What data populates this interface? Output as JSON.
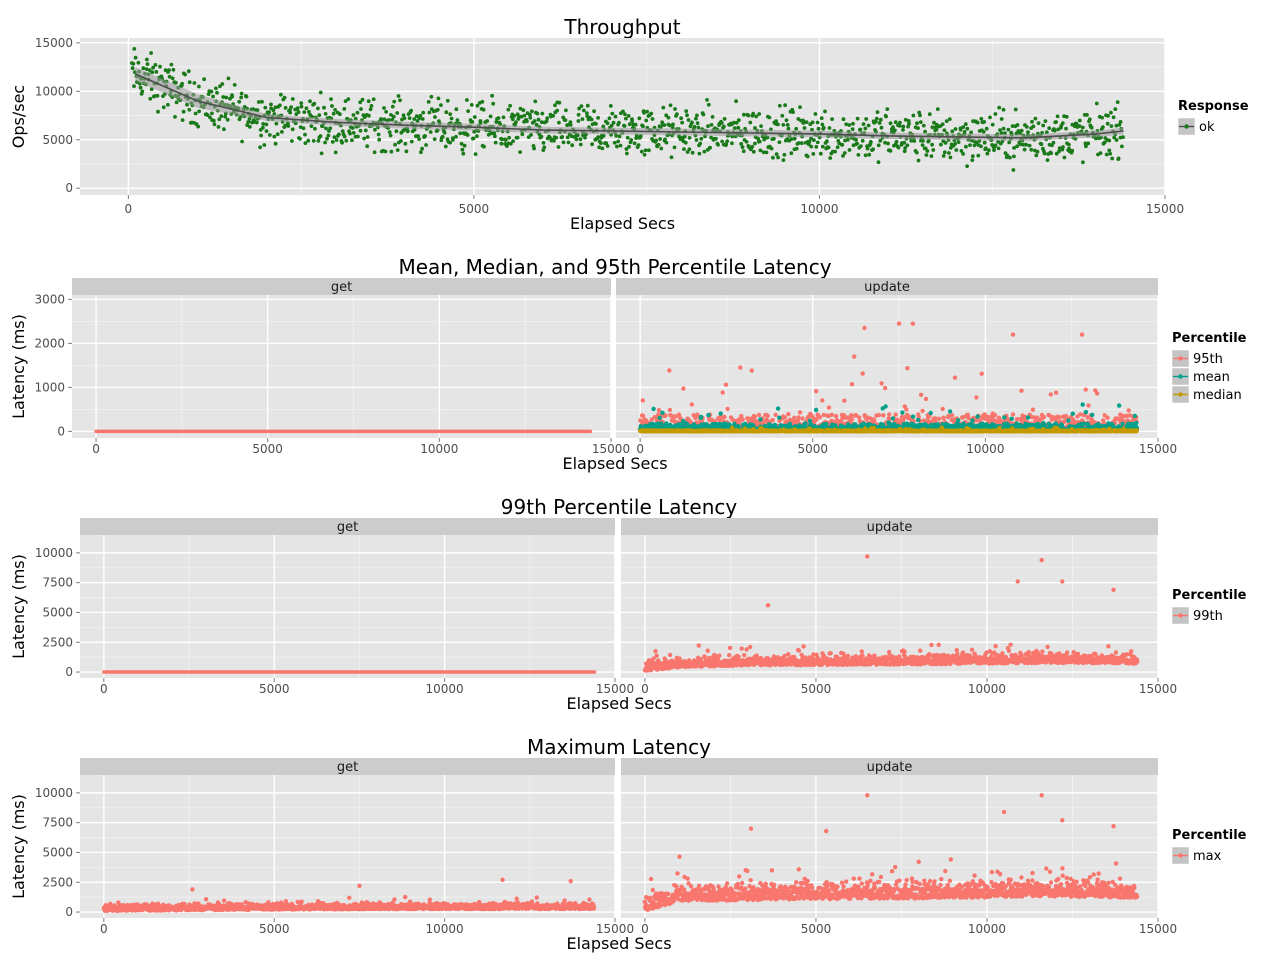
{
  "colors": {
    "panel_bg": "#e5e5e5",
    "grid_major": "#ffffff",
    "grid_minor": "#f2f2f2",
    "strip_bg": "#cccccc",
    "throughput_points": "#1a7a1a",
    "smooth_line": "#4d4d4d",
    "smooth_band": "#999999",
    "p95": "#f8766d",
    "mean": "#00a08a",
    "median": "#c49a00",
    "p99": "#f8766d",
    "max": "#f8766d"
  },
  "chart_data": [
    {
      "type": "scatter",
      "title": "Throughput",
      "xlabel": "Elapsed Secs",
      "ylabel": "Ops/sec",
      "xlim": [
        -700,
        15000
      ],
      "ylim": [
        -700,
        15500
      ],
      "xticks": [
        0,
        5000,
        10000,
        15000
      ],
      "yticks": [
        0,
        5000,
        10000,
        15000
      ],
      "grid": true,
      "legend": {
        "title": "Response",
        "placement": "right",
        "entries": [
          "ok"
        ]
      },
      "series": [
        {
          "name": "ok",
          "trend": [
            [
              100,
              11800
            ],
            [
              1000,
              9000
            ],
            [
              2000,
              7300
            ],
            [
              3000,
              6800
            ],
            [
              4000,
              6500
            ],
            [
              5000,
              6300
            ],
            [
              6000,
              6000
            ],
            [
              7000,
              5900
            ],
            [
              8000,
              5800
            ],
            [
              9000,
              5700
            ],
            [
              10000,
              5600
            ],
            [
              11000,
              5400
            ],
            [
              12000,
              5300
            ],
            [
              13000,
              5200
            ],
            [
              14000,
              5600
            ],
            [
              14400,
              5900
            ]
          ],
          "spread": 3500,
          "x_range": [
            50,
            14400
          ],
          "count": 1500
        }
      ]
    },
    {
      "type": "scatter",
      "title": "Mean, Median, and 95th Percentile Latency",
      "xlabel": "Elapsed Secs",
      "ylabel": "Latency (ms)",
      "xlim": [
        -700,
        15000
      ],
      "ylim": [
        -150,
        3100
      ],
      "xticks": [
        0,
        5000,
        10000,
        15000
      ],
      "yticks": [
        0,
        1000,
        2000,
        3000
      ],
      "grid": true,
      "facets": [
        "get",
        "update"
      ],
      "legend": {
        "title": "Percentile",
        "placement": "right",
        "entries": [
          "95th",
          "mean",
          "median"
        ]
      },
      "series": [
        {
          "name": "95th",
          "facet": "get",
          "constant": 0
        },
        {
          "name": "95th",
          "facet": "update",
          "baseline": 40,
          "spread": 350,
          "outliers": [
            [
              6500,
              2350
            ],
            [
              7500,
              2450
            ],
            [
              7900,
              2450
            ],
            [
              10800,
              2200
            ],
            [
              12800,
              2200
            ],
            [
              6200,
              1700
            ],
            [
              2900,
              1450
            ]
          ]
        },
        {
          "name": "mean",
          "facet": "update",
          "baseline": 30,
          "spread": 150
        },
        {
          "name": "median",
          "facet": "update",
          "baseline": 5,
          "spread": 20
        }
      ]
    },
    {
      "type": "scatter",
      "title": "99th Percentile Latency",
      "xlabel": "Elapsed Secs",
      "ylabel": "Latency (ms)",
      "xlim": [
        -700,
        15000
      ],
      "ylim": [
        -500,
        11500
      ],
      "xticks": [
        0,
        5000,
        10000,
        15000
      ],
      "yticks": [
        0,
        2500,
        5000,
        7500,
        10000
      ],
      "grid": true,
      "facets": [
        "get",
        "update"
      ],
      "legend": {
        "title": "Percentile",
        "placement": "right",
        "entries": [
          "99th"
        ]
      },
      "series": [
        {
          "name": "99th",
          "facet": "get",
          "constant": 0
        },
        {
          "name": "99th",
          "facet": "update",
          "trend": [
            [
              0,
              100
            ],
            [
              1000,
              800
            ],
            [
              3000,
              1100
            ],
            [
              6000,
              1200
            ],
            [
              10000,
              1400
            ],
            [
              12000,
              1550
            ],
            [
              14400,
              1400
            ]
          ],
          "spread": 1400,
          "outliers": [
            [
              6500,
              9700
            ],
            [
              11600,
              9400
            ],
            [
              12200,
              7600
            ],
            [
              10900,
              7600
            ],
            [
              13700,
              6900
            ],
            [
              3600,
              5600
            ]
          ]
        }
      ]
    },
    {
      "type": "scatter",
      "title": "Maximum Latency",
      "xlabel": "Elapsed Secs",
      "ylabel": "Latency (ms)",
      "xlim": [
        -700,
        15000
      ],
      "ylim": [
        -500,
        11500
      ],
      "xticks": [
        0,
        5000,
        10000,
        15000
      ],
      "yticks": [
        0,
        2500,
        5000,
        7500,
        10000
      ],
      "grid": true,
      "facets": [
        "get",
        "update"
      ],
      "legend": {
        "title": "Percentile",
        "placement": "right",
        "entries": [
          "max"
        ]
      },
      "series": [
        {
          "name": "max",
          "facet": "get",
          "trend": [
            [
              0,
              200
            ],
            [
              5000,
              400
            ],
            [
              10000,
              500
            ],
            [
              14400,
              500
            ]
          ],
          "spread": 900,
          "outliers": [
            [
              2600,
              1900
            ],
            [
              7500,
              2200
            ],
            [
              11700,
              2700
            ],
            [
              13700,
              2600
            ]
          ]
        },
        {
          "name": "max",
          "facet": "update",
          "trend": [
            [
              0,
              200
            ],
            [
              1000,
              1800
            ],
            [
              4000,
              2100
            ],
            [
              8000,
              2300
            ],
            [
              12000,
              2600
            ],
            [
              14400,
              2400
            ]
          ],
          "spread": 2400,
          "outliers": [
            [
              6500,
              9800
            ],
            [
              11600,
              9800
            ],
            [
              10500,
              8400
            ],
            [
              12200,
              7700
            ],
            [
              3100,
              7000
            ],
            [
              5300,
              6800
            ],
            [
              13700,
              7200
            ]
          ]
        }
      ]
    }
  ]
}
